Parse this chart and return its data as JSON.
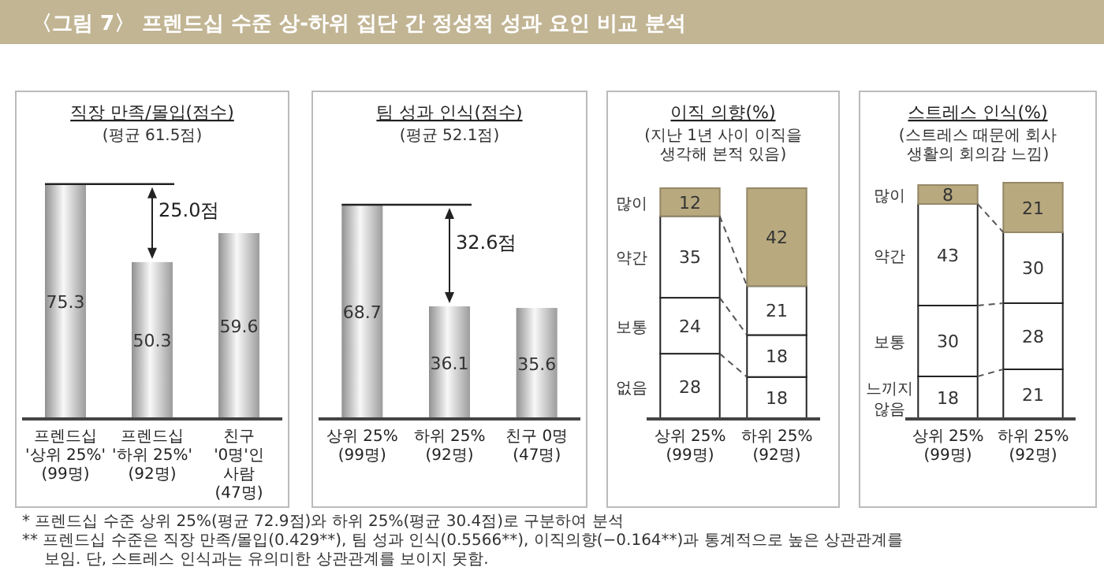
{
  "chart_data": [
    {
      "type": "bar",
      "title": "직장 만족/몰입(점수)",
      "subtitle": "(평균 61.5점)",
      "categories": [
        "프렌드십\n'상위 25%'\n(99명)",
        "프렌드십\n'하위 25%'\n(92명)",
        "친구\n'0명'인\n사람\n(47명)"
      ],
      "values": [
        75.3,
        50.3,
        59.6
      ],
      "color": "#c8c8c8",
      "data_labels": true,
      "annotations": [
        "25.0점"
      ]
    },
    {
      "type": "bar",
      "title": "팀 성과 인식(점수)",
      "subtitle": "(평균 52.1점)",
      "categories": [
        "상위 25%\n(99명)",
        "하위 25%\n(92명)",
        "친구 0명\n(47명)"
      ],
      "values": [
        68.7,
        36.1,
        35.6
      ],
      "color": "#c8c8c8",
      "data_labels": true,
      "annotations": [
        "32.6점"
      ]
    },
    {
      "type": "bar",
      "stacked": true,
      "title": "이직 의향(%)",
      "subtitle": "(지난 1년 사이 이직을\n생각해 본적 있음)",
      "categories": [
        "상위 25%\n(99명)",
        "하위 25%\n(92명)"
      ],
      "legend": "left",
      "data_labels": true,
      "series": [
        {
          "name": "없음",
          "color": "#ffffff",
          "values": [
            28,
            18
          ]
        },
        {
          "name": "보통",
          "color": "#ffffff",
          "values": [
            24,
            18
          ]
        },
        {
          "name": "약간",
          "color": "#ffffff",
          "values": [
            35,
            21
          ]
        },
        {
          "name": "많이",
          "color": "#b8a97f",
          "values": [
            12,
            42
          ]
        }
      ]
    },
    {
      "type": "bar",
      "stacked": true,
      "title": "스트레스 인식(%)",
      "subtitle": "(스트레스 때문에 회사\n생활의 회의감 느낌)",
      "categories": [
        "상위 25%\n(99명)",
        "하위 25%\n(92명)"
      ],
      "legend": "left",
      "data_labels": true,
      "series": [
        {
          "name": "느끼지\n않음",
          "color": "#ffffff",
          "values": [
            18,
            21
          ]
        },
        {
          "name": "보통",
          "color": "#ffffff",
          "values": [
            30,
            28
          ]
        },
        {
          "name": "약간",
          "color": "#ffffff",
          "values": [
            43,
            30
          ]
        },
        {
          "name": "많이",
          "color": "#b8a97f",
          "values": [
            8,
            21
          ]
        }
      ],
      "annotations": [
        "〈그림 7〉 프렌드십 수준 상-하위 집단 간 정성적 성과 요인 비교 분석",
        "* 프렌드십 수준 상위 25%(평균 72.9점)와 하위 25%(평균 30.4점)로 구분하여 분석",
        "** 프렌드십 수준은 직장 만족/몰입(0.429**), 팀 성과 인식(0.5566**), 이직의향(−0.164**)과 통계적으로 높은 상관관계를 보임. 단, 스트레스 인식과는 유의미한 상관관계를 보이지 못함."
      ]
    }
  ]
}
